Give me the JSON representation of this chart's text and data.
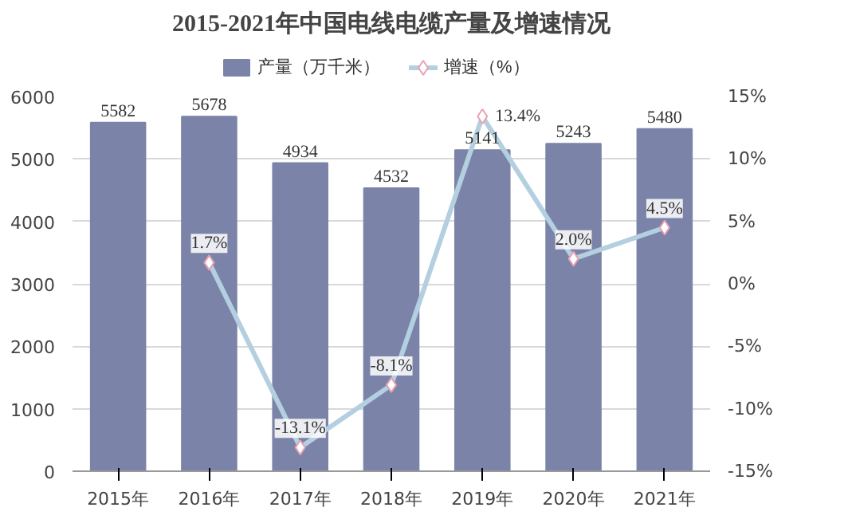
{
  "chart_data": {
    "type": "bar",
    "title": "2015-2021年中国电线电缆产量及增速情况",
    "categories": [
      "2015年",
      "2016年",
      "2017年",
      "2018年",
      "2019年",
      "2020年",
      "2021年"
    ],
    "series": [
      {
        "name": "产量（万千米）",
        "type": "bar",
        "color": "#7b84a8",
        "values": [
          5582,
          5678,
          4934,
          4532,
          5141,
          5243,
          5480
        ],
        "value_labels": [
          "5582",
          "5678",
          "4934",
          "4532",
          "5141",
          "5243",
          "5480"
        ]
      },
      {
        "name": "增速（%）",
        "type": "line",
        "axis": "y2",
        "color": "#b3cfe0",
        "marker": "diamond",
        "values": [
          null,
          1.7,
          -13.1,
          -8.1,
          13.4,
          2.0,
          4.5
        ],
        "value_labels": [
          null,
          "1.7%",
          "-13.1%",
          "-8.1%",
          "13.4%",
          "2.0%",
          "4.5%"
        ]
      }
    ],
    "ylim": [
      0,
      6000
    ],
    "yticks": [
      0,
      1000,
      2000,
      3000,
      4000,
      5000,
      6000
    ],
    "y2lim": [
      -15,
      15
    ],
    "y2ticks": [
      {
        "value": -15,
        "label": "-15%"
      },
      {
        "value": -10,
        "label": "-10%"
      },
      {
        "value": -5,
        "label": "-5%"
      },
      {
        "value": 0,
        "label": "0%"
      },
      {
        "value": 5,
        "label": "5%"
      },
      {
        "value": 10,
        "label": "10%"
      },
      {
        "value": 15,
        "label": "15%"
      }
    ],
    "grid": "y",
    "legend": "top"
  }
}
